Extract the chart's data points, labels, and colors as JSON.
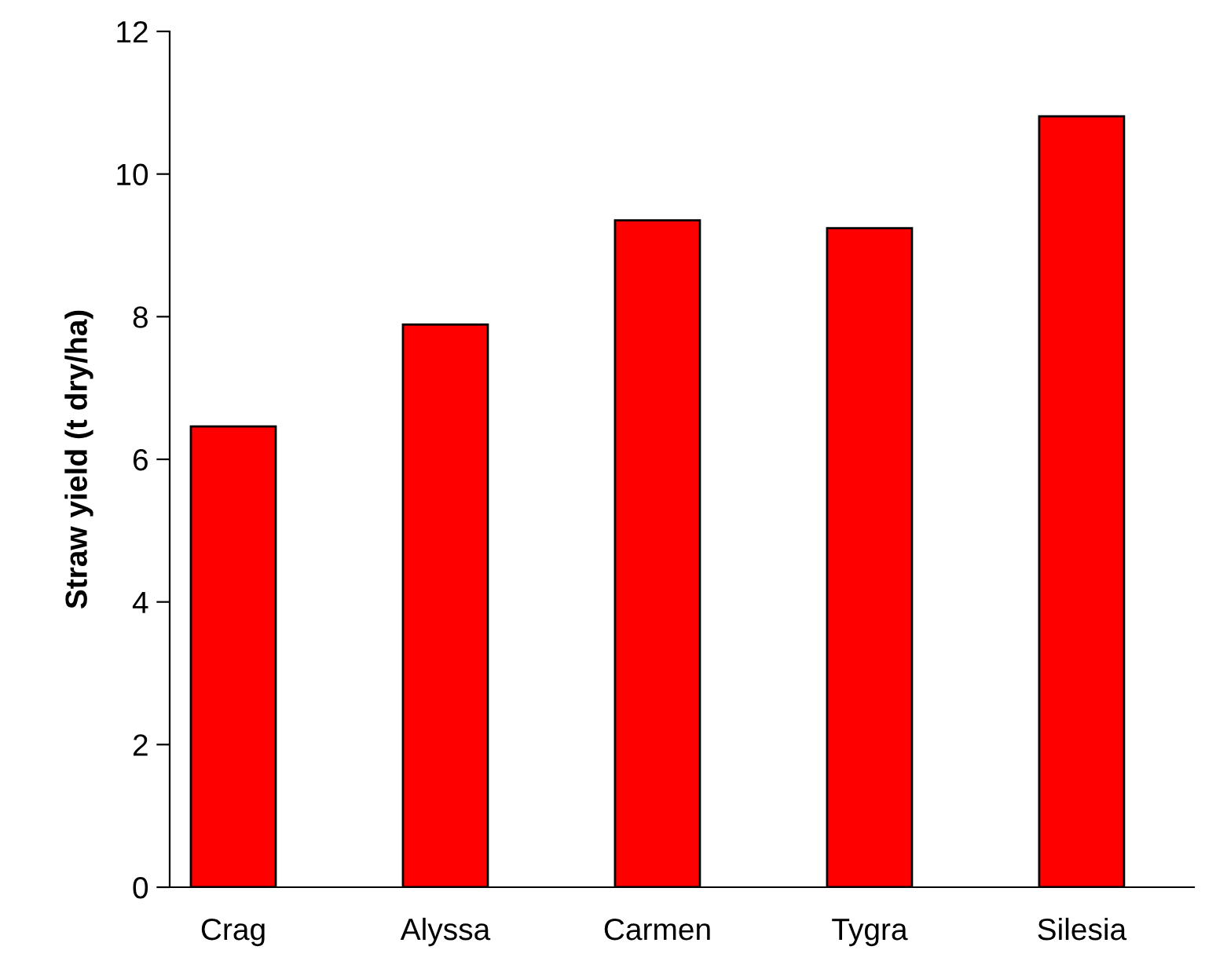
{
  "chart_data": {
    "type": "bar",
    "ylabel": "Straw yield (t dry/ha)",
    "categories": [
      "Crag",
      "Alyssa",
      "Carmen",
      "Tygra",
      "Silesia"
    ],
    "values": [
      6.46,
      7.89,
      9.35,
      9.24,
      10.81
    ],
    "color": "#ff0000",
    "ylim": [
      0,
      12
    ],
    "yticks": [
      0,
      2,
      4,
      6,
      8,
      10,
      12
    ],
    "grid": false,
    "legend": false
  }
}
